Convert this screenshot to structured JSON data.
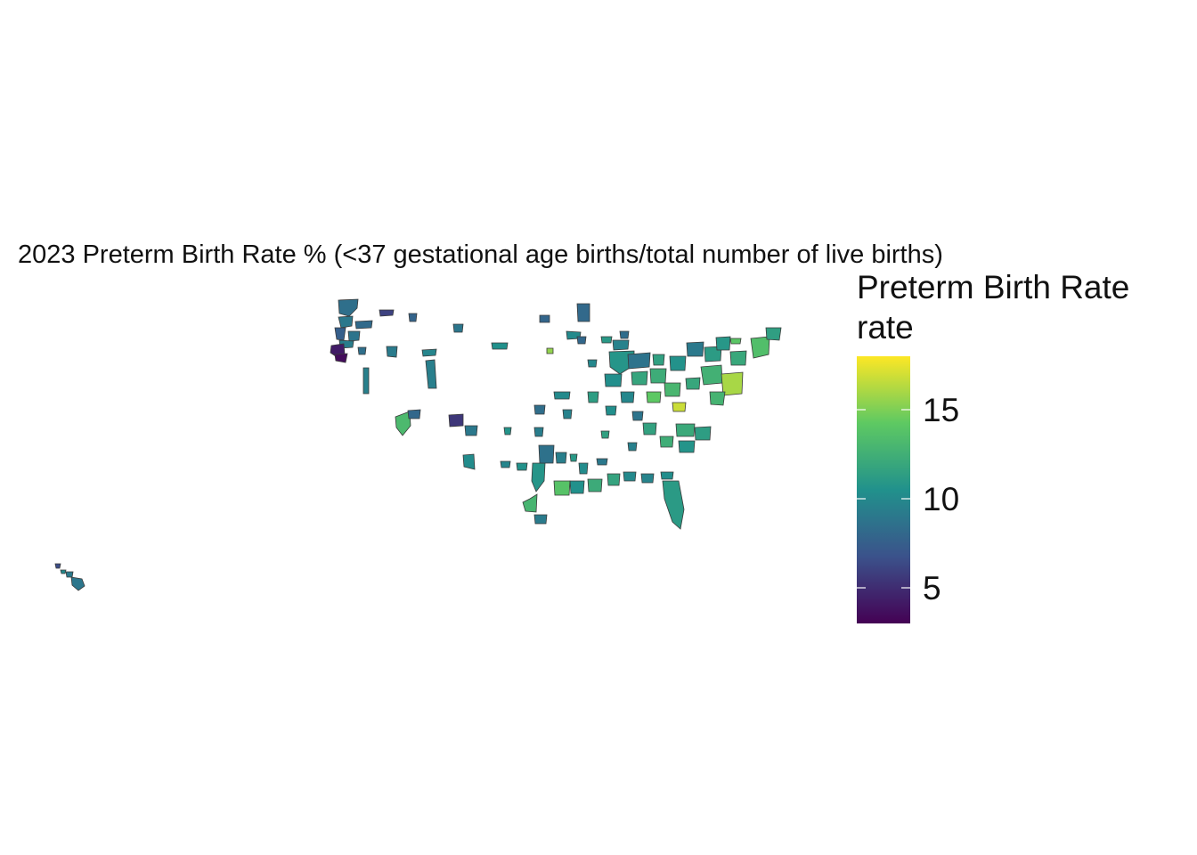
{
  "title": "2023 Preterm Birth Rate % (<37 gestational age births/total number of live births)",
  "legend": {
    "title_line1": "Preterm Birth Rate",
    "title_line2": "rate",
    "min": 3,
    "max": 18,
    "ticks": [
      5,
      10,
      15
    ],
    "palette": [
      "#440154",
      "#3b528b",
      "#21918c",
      "#5ec962",
      "#fde725"
    ]
  },
  "regions": [
    {
      "rate": 8.5
    },
    {
      "rate": 9.0
    },
    {
      "rate": 8.2
    },
    {
      "rate": 7.5
    },
    {
      "rate": 8.8
    },
    {
      "rate": 9.3
    },
    {
      "rate": 4.2
    },
    {
      "rate": 3.5
    },
    {
      "rate": 6.0
    },
    {
      "rate": 7.8
    },
    {
      "rate": 8.5
    },
    {
      "rate": 9.5
    },
    {
      "rate": 13.2
    },
    {
      "rate": 8.0
    },
    {
      "rate": 9.2
    },
    {
      "rate": 5.5
    },
    {
      "rate": 10.2
    },
    {
      "rate": 9.0
    },
    {
      "rate": 8.1
    },
    {
      "rate": 7.9
    },
    {
      "rate": 10.5
    },
    {
      "rate": 9.8
    },
    {
      "rate": 9.4
    },
    {
      "rate": 8.9
    },
    {
      "rate": 10.1
    },
    {
      "rate": 11.0
    },
    {
      "rate": 9.6
    },
    {
      "rate": 10.8
    },
    {
      "rate": 8.7
    },
    {
      "rate": 11.5
    },
    {
      "rate": 15.5
    },
    {
      "rate": 9.9
    },
    {
      "rate": 10.4
    },
    {
      "rate": 11.8
    },
    {
      "rate": 12.3
    },
    {
      "rate": 10.6
    },
    {
      "rate": 9.1
    },
    {
      "rate": 11.2
    },
    {
      "rate": 10.9
    },
    {
      "rate": 12.0
    },
    {
      "rate": 13.5
    },
    {
      "rate": 11.4
    },
    {
      "rate": 14.0
    },
    {
      "rate": 12.6
    },
    {
      "rate": 16.0
    },
    {
      "rate": 12.8
    },
    {
      "rate": 11.9
    },
    {
      "rate": 13.0
    },
    {
      "rate": 14.2
    },
    {
      "rate": 16.8
    },
    {
      "rate": 12.1
    },
    {
      "rate": 11.3
    },
    {
      "rate": 10.7
    },
    {
      "rate": 11.6
    },
    {
      "rate": 12.4
    },
    {
      "rate": 11.1
    },
    {
      "rate": 10.3
    },
    {
      "rate": 9.7
    },
    {
      "rate": 10.0
    },
    {
      "rate": 11.7
    },
    {
      "rate": 12.2
    },
    {
      "rate": 10.5
    },
    {
      "rate": 13.8
    },
    {
      "rate": 12.9
    },
    {
      "rate": 9.2
    },
    {
      "rate": 10.8
    },
    {
      "rate": 8.6
    },
    {
      "rate": 9.4
    },
    {
      "rate": 10.2
    },
    {
      "rate": 9.0
    },
    {
      "rate": 11.0
    },
    {
      "rate": 10.6
    },
    {
      "rate": 9.8
    },
    {
      "rate": 8.4
    },
    {
      "rate": 9.6
    },
    {
      "rate": 10.1
    },
    {
      "rate": 11.3
    },
    {
      "rate": 9.9
    },
    {
      "rate": 10.4
    },
    {
      "rate": 8.8
    },
    {
      "rate": 9.3
    },
    {
      "rate": 10.7
    },
    {
      "rate": 11.5
    },
    {
      "rate": 9.5
    },
    {
      "rate": 6.5
    },
    {
      "rate": 10.0
    },
    {
      "rate": 9.1
    },
    {
      "rate": 8.9
    },
    {
      "rate": 8.0
    },
    {
      "rate": 8.3
    }
  ]
}
